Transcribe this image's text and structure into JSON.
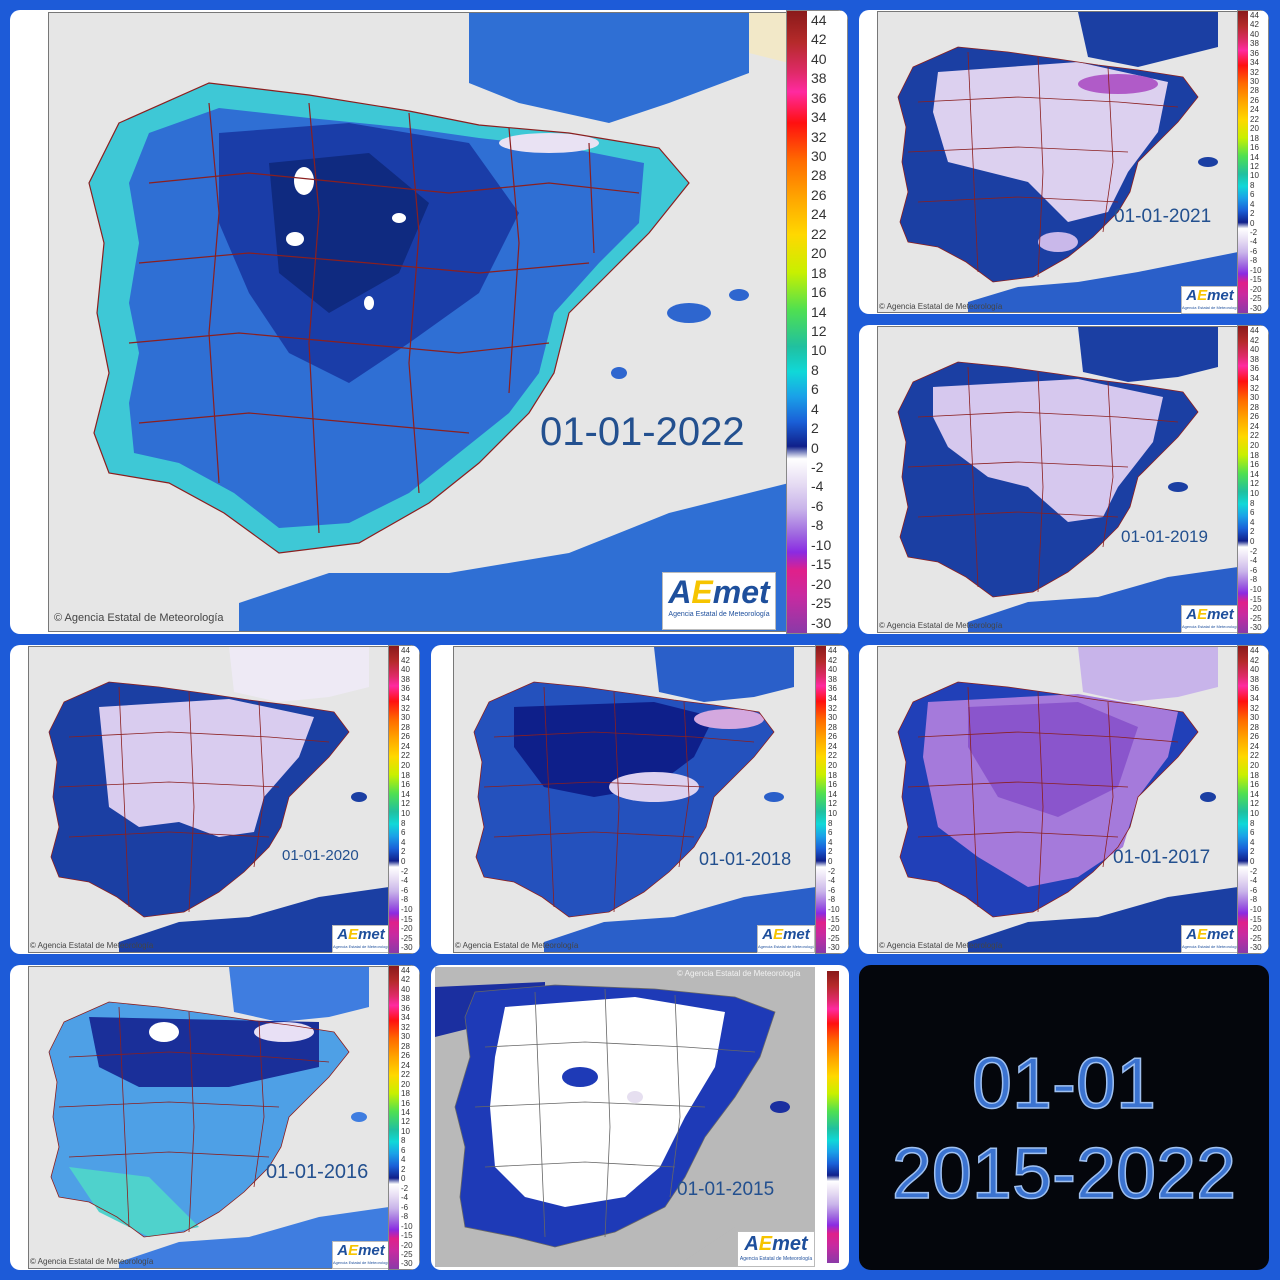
{
  "collage_title": {
    "line1": "01-01",
    "line2": "2015-2022"
  },
  "credit": "© Agencia Estatal de Meteorología",
  "logo": {
    "mark_a": "A",
    "mark_e": "E",
    "mark_rest": "met",
    "sub": "Agencia Estatal de Meteorología"
  },
  "scale_positive": [
    "44",
    "42",
    "40",
    "38",
    "36",
    "34",
    "32",
    "30",
    "28",
    "26",
    "24",
    "22",
    "20",
    "18",
    "16",
    "14",
    "12",
    "10",
    "8",
    "6",
    "4",
    "2",
    "0"
  ],
  "scale_negative": [
    "-2",
    "-4",
    "-6",
    "-8",
    "-10",
    "-15",
    "-20",
    "-25",
    "-30"
  ],
  "colors": {
    "frame": "#1d5bd8",
    "sea": "#e6e6e6",
    "borders": "#8b1f1f",
    "date_text": "#23508f"
  },
  "maps": [
    {
      "date": "01-01-2022",
      "theme": "blue-cyan"
    },
    {
      "date": "01-01-2021",
      "theme": "blue-lilac"
    },
    {
      "date": "01-01-2019",
      "theme": "blue-lilac"
    },
    {
      "date": "01-01-2020",
      "theme": "blue-lilac"
    },
    {
      "date": "01-01-2018",
      "theme": "blue-lilac"
    },
    {
      "date": "01-01-2017",
      "theme": "violet"
    },
    {
      "date": "01-01-2016",
      "theme": "blue-cyan"
    },
    {
      "date": "01-01-2015",
      "theme": "white-navy"
    }
  ]
}
